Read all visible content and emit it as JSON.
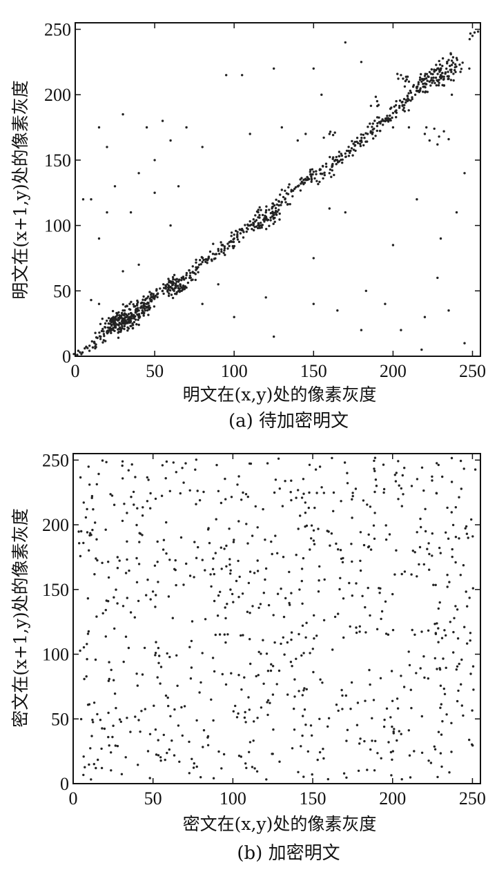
{
  "chart_data": [
    {
      "type": "scatter",
      "caption": "(a) 待加密明文",
      "xlabel": "明文在(x,y)处的像素灰度",
      "ylabel": "明文在(x+1,y)处的像素灰度",
      "xlim": [
        0,
        255
      ],
      "ylim": [
        0,
        255
      ],
      "xticks": [
        0,
        50,
        100,
        150,
        200,
        250
      ],
      "yticks": [
        0,
        50,
        100,
        150,
        200,
        250
      ],
      "xtick_labels": [
        "0",
        "50",
        "100",
        "150",
        "200",
        "250"
      ],
      "ytick_labels": [
        "0",
        "50",
        "100",
        "150",
        "200",
        "250"
      ],
      "grid": false,
      "marker_color": "#222222",
      "points": [
        [
          3,
          3
        ],
        [
          6,
          6
        ],
        [
          9,
          8
        ],
        [
          12,
          11
        ],
        [
          14,
          14
        ],
        [
          16,
          15
        ],
        [
          18,
          17
        ],
        [
          19,
          22
        ],
        [
          20,
          19
        ],
        [
          21,
          25
        ],
        [
          22,
          21
        ],
        [
          22,
          27
        ],
        [
          23,
          24
        ],
        [
          24,
          30
        ],
        [
          24,
          20
        ],
        [
          25,
          26
        ],
        [
          25,
          22
        ],
        [
          26,
          28
        ],
        [
          26,
          33
        ],
        [
          27,
          24
        ],
        [
          27,
          18
        ],
        [
          28,
          29
        ],
        [
          28,
          25
        ],
        [
          29,
          31
        ],
        [
          29,
          21
        ],
        [
          30,
          27
        ],
        [
          30,
          35
        ],
        [
          31,
          23
        ],
        [
          31,
          29
        ],
        [
          32,
          26
        ],
        [
          32,
          32
        ],
        [
          33,
          28
        ],
        [
          33,
          22
        ],
        [
          34,
          30
        ],
        [
          34,
          36
        ],
        [
          35,
          27
        ],
        [
          35,
          33
        ],
        [
          36,
          25
        ],
        [
          36,
          31
        ],
        [
          37,
          29
        ],
        [
          37,
          38
        ],
        [
          38,
          34
        ],
        [
          38,
          28
        ],
        [
          39,
          32
        ],
        [
          39,
          40
        ],
        [
          40,
          35
        ],
        [
          40,
          30
        ],
        [
          41,
          37
        ],
        [
          42,
          33
        ],
        [
          42,
          41
        ],
        [
          43,
          39
        ],
        [
          44,
          35
        ],
        [
          44,
          43
        ],
        [
          45,
          40
        ],
        [
          46,
          38
        ],
        [
          47,
          44
        ],
        [
          48,
          42
        ],
        [
          49,
          46
        ],
        [
          50,
          45
        ],
        [
          52,
          48
        ],
        [
          55,
          50
        ],
        [
          57,
          52
        ],
        [
          58,
          55
        ],
        [
          59,
          48
        ],
        [
          60,
          53
        ],
        [
          61,
          57
        ],
        [
          62,
          51
        ],
        [
          62,
          56
        ],
        [
          63,
          54
        ],
        [
          64,
          59
        ],
        [
          64,
          49
        ],
        [
          65,
          52
        ],
        [
          65,
          57
        ],
        [
          66,
          55
        ],
        [
          67,
          60
        ],
        [
          67,
          50
        ],
        [
          68,
          54
        ],
        [
          70,
          62
        ],
        [
          72,
          60
        ],
        [
          74,
          64
        ],
        [
          76,
          66
        ],
        [
          78,
          70
        ],
        [
          80,
          72
        ],
        [
          82,
          74
        ],
        [
          84,
          76
        ],
        [
          86,
          73
        ],
        [
          88,
          78
        ],
        [
          90,
          82
        ],
        [
          92,
          80
        ],
        [
          94,
          84
        ],
        [
          96,
          86
        ],
        [
          98,
          88
        ],
        [
          100,
          90
        ],
        [
          102,
          92
        ],
        [
          104,
          94
        ],
        [
          106,
          95
        ],
        [
          108,
          98
        ],
        [
          110,
          100
        ],
        [
          112,
          102
        ],
        [
          114,
          104
        ],
        [
          115,
          98
        ],
        [
          116,
          106
        ],
        [
          117,
          100
        ],
        [
          118,
          108
        ],
        [
          119,
          103
        ],
        [
          120,
          110
        ],
        [
          121,
          104
        ],
        [
          122,
          112
        ],
        [
          123,
          106
        ],
        [
          124,
          114
        ],
        [
          125,
          108
        ],
        [
          126,
          110
        ],
        [
          127,
          116
        ],
        [
          128,
          112
        ],
        [
          130,
          118
        ],
        [
          132,
          120
        ],
        [
          134,
          124
        ],
        [
          136,
          126
        ],
        [
          138,
          128
        ],
        [
          140,
          130
        ],
        [
          142,
          132
        ],
        [
          144,
          135
        ],
        [
          146,
          137
        ],
        [
          148,
          139
        ],
        [
          150,
          141
        ],
        [
          152,
          134
        ],
        [
          154,
          143
        ],
        [
          156,
          136
        ],
        [
          158,
          145
        ],
        [
          160,
          140
        ],
        [
          162,
          147
        ],
        [
          164,
          150
        ],
        [
          166,
          153
        ],
        [
          168,
          148
        ],
        [
          170,
          155
        ],
        [
          172,
          157
        ],
        [
          174,
          159
        ],
        [
          176,
          161
        ],
        [
          178,
          163
        ],
        [
          180,
          165
        ],
        [
          182,
          167
        ],
        [
          184,
          170
        ],
        [
          186,
          172
        ],
        [
          188,
          174
        ],
        [
          190,
          176
        ],
        [
          192,
          178
        ],
        [
          194,
          180
        ],
        [
          196,
          182
        ],
        [
          198,
          184
        ],
        [
          200,
          186
        ],
        [
          202,
          188
        ],
        [
          204,
          190
        ],
        [
          206,
          192
        ],
        [
          208,
          194
        ],
        [
          210,
          196
        ],
        [
          212,
          198
        ],
        [
          214,
          200
        ],
        [
          215,
          205
        ],
        [
          216,
          208
        ],
        [
          217,
          203
        ],
        [
          218,
          210
        ],
        [
          219,
          206
        ],
        [
          220,
          212
        ],
        [
          221,
          208
        ],
        [
          222,
          214
        ],
        [
          223,
          210
        ],
        [
          224,
          216
        ],
        [
          225,
          211
        ],
        [
          226,
          218
        ],
        [
          227,
          213
        ],
        [
          228,
          220
        ],
        [
          229,
          209
        ],
        [
          230,
          215
        ],
        [
          231,
          222
        ],
        [
          232,
          212
        ],
        [
          233,
          217
        ],
        [
          234,
          224
        ],
        [
          235,
          214
        ],
        [
          236,
          219
        ],
        [
          237,
          226
        ],
        [
          238,
          216
        ],
        [
          239,
          221
        ],
        [
          240,
          228
        ],
        [
          220,
          170
        ],
        [
          223,
          165
        ],
        [
          226,
          174
        ],
        [
          229,
          168
        ],
        [
          232,
          172
        ],
        [
          235,
          166
        ],
        [
          221,
          175
        ],
        [
          228,
          162
        ],
        [
          15,
          175
        ],
        [
          20,
          160
        ],
        [
          25,
          130
        ],
        [
          30,
          185
        ],
        [
          40,
          140
        ],
        [
          45,
          175
        ],
        [
          50,
          150
        ],
        [
          55,
          180
        ],
        [
          35,
          110
        ],
        [
          60,
          165
        ],
        [
          70,
          175
        ],
        [
          80,
          160
        ],
        [
          95,
          215
        ],
        [
          105,
          215
        ],
        [
          110,
          170
        ],
        [
          125,
          220
        ],
        [
          130,
          175
        ],
        [
          140,
          165
        ],
        [
          150,
          220
        ],
        [
          155,
          200
        ],
        [
          160,
          170
        ],
        [
          170,
          240
        ],
        [
          180,
          225
        ],
        [
          190,
          195
        ],
        [
          200,
          175
        ],
        [
          205,
          215
        ],
        [
          210,
          210
        ],
        [
          215,
          120
        ],
        [
          230,
          90
        ],
        [
          240,
          110
        ],
        [
          245,
          140
        ],
        [
          250,
          245
        ],
        [
          248,
          220
        ],
        [
          237,
          200
        ],
        [
          10,
          120
        ],
        [
          15,
          90
        ],
        [
          40,
          70
        ],
        [
          80,
          40
        ],
        [
          100,
          30
        ],
        [
          125,
          15
        ],
        [
          150,
          40
        ],
        [
          165,
          35
        ],
        [
          180,
          20
        ],
        [
          195,
          40
        ],
        [
          205,
          20
        ],
        [
          220,
          30
        ],
        [
          228,
          60
        ],
        [
          235,
          35
        ],
        [
          245,
          10
        ],
        [
          200,
          85
        ],
        [
          183,
          50
        ],
        [
          150,
          75
        ],
        [
          145,
          170
        ],
        [
          120,
          45
        ],
        [
          90,
          55
        ],
        [
          60,
          100
        ],
        [
          65,
          130
        ],
        [
          50,
          125
        ],
        [
          20,
          110
        ],
        [
          15,
          40
        ],
        [
          30,
          65
        ],
        [
          160,
          113
        ],
        [
          170,
          110
        ],
        [
          210,
          175
        ],
        [
          218,
          5
        ],
        [
          10,
          43
        ],
        [
          5,
          120
        ]
      ]
    },
    {
      "type": "scatter",
      "caption": "(b) 加密明文",
      "xlabel": "密文在(x,y)处的像素灰度",
      "ylabel": "密文在(x+1,y)处的像素灰度",
      "xlim": [
        0,
        255
      ],
      "ylim": [
        0,
        255
      ],
      "xticks": [
        0,
        50,
        100,
        150,
        200,
        250
      ],
      "yticks": [
        0,
        50,
        100,
        150,
        200,
        250
      ],
      "xtick_labels": [
        "0",
        "50",
        "100",
        "150",
        "200",
        "250"
      ],
      "ytick_labels": [
        "0",
        "50",
        "100",
        "150",
        "200",
        "250"
      ],
      "grid": false,
      "marker_color": "#222222",
      "distribution": "uniform",
      "point_count": 820
    }
  ]
}
